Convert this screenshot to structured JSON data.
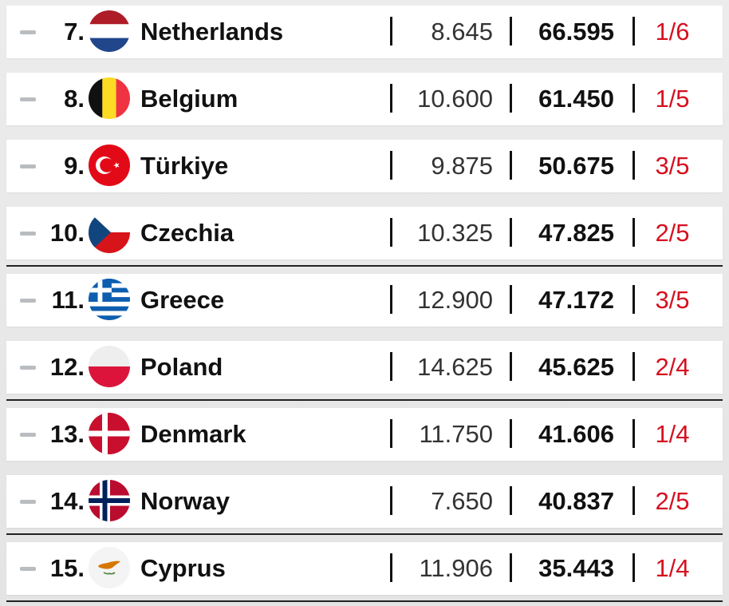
{
  "rows": [
    {
      "rank": "7.",
      "country": "Netherlands",
      "flag": "netherlands-flag-icon",
      "value1": "8.645",
      "value2": "66.595",
      "ratio": "1/6"
    },
    {
      "rank": "8.",
      "country": "Belgium",
      "flag": "belgium-flag-icon",
      "value1": "10.600",
      "value2": "61.450",
      "ratio": "1/5"
    },
    {
      "rank": "9.",
      "country": "Türkiye",
      "flag": "turkiye-flag-icon",
      "value1": "9.875",
      "value2": "50.675",
      "ratio": "3/5"
    },
    {
      "rank": "10.",
      "country": "Czechia",
      "flag": "czechia-flag-icon",
      "value1": "10.325",
      "value2": "47.825",
      "ratio": "2/5"
    },
    {
      "rank": "11.",
      "country": "Greece",
      "flag": "greece-flag-icon",
      "value1": "12.900",
      "value2": "47.172",
      "ratio": "3/5"
    },
    {
      "rank": "12.",
      "country": "Poland",
      "flag": "poland-flag-icon",
      "value1": "14.625",
      "value2": "45.625",
      "ratio": "2/4"
    },
    {
      "rank": "13.",
      "country": "Denmark",
      "flag": "denmark-flag-icon",
      "value1": "11.750",
      "value2": "41.606",
      "ratio": "1/4"
    },
    {
      "rank": "14.",
      "country": "Norway",
      "flag": "norway-flag-icon",
      "value1": "7.650",
      "value2": "40.837",
      "ratio": "2/5"
    },
    {
      "rank": "15.",
      "country": "Cyprus",
      "flag": "cyprus-flag-icon",
      "value1": "11.906",
      "value2": "35.443",
      "ratio": "1/4"
    }
  ],
  "colors": {
    "ratio_text": "#d6101f",
    "trend_marker": "#b9bcc0",
    "divider": "#222222"
  }
}
